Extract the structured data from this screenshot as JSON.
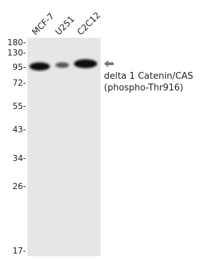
{
  "lanes": [
    "MCF-7",
    "U251",
    "C2C12"
  ],
  "markers": [
    "180-",
    "130-",
    "95-",
    "72-",
    "55-",
    "43-",
    "34-",
    "26-",
    "17-"
  ],
  "target": {
    "line1": "delta 1 Catenin/CAS",
    "line2": "(phospho-Thr916)"
  }
}
